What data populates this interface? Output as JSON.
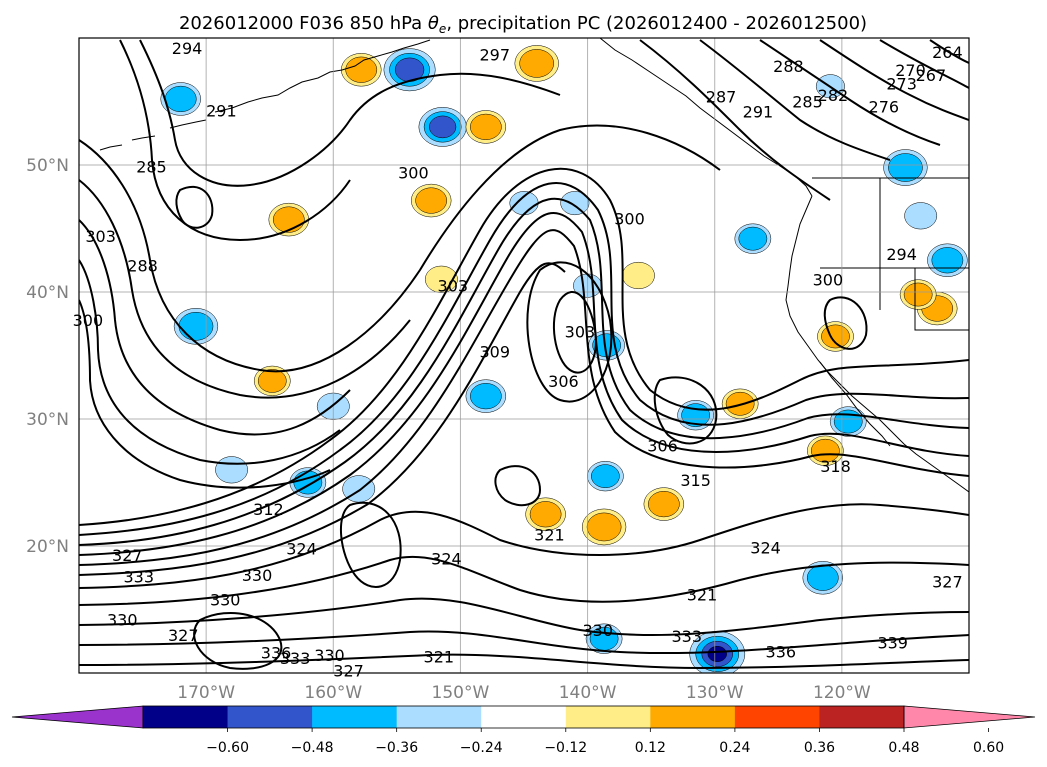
{
  "chart_data": {
    "type": "contour map",
    "title_parts": {
      "pre": "2026012000 F036 850 hPa ",
      "theta": "θ",
      "sub": "e",
      "post": ", precipitation PC (2026012400 - 2026012500)"
    },
    "lat_labels": [
      {
        "lat": 50,
        "text": "50°N"
      },
      {
        "lat": 40,
        "text": "40°N"
      },
      {
        "lat": 30,
        "text": "30°N"
      },
      {
        "lat": 20,
        "text": "20°N"
      }
    ],
    "lon_labels": [
      {
        "lon": -170,
        "text": "170°W"
      },
      {
        "lon": -160,
        "text": "160°W"
      },
      {
        "lon": -150,
        "text": "150°W"
      },
      {
        "lon": -140,
        "text": "140°W"
      },
      {
        "lon": -130,
        "text": "130°W"
      },
      {
        "lon": -120,
        "text": "120°W"
      }
    ],
    "extent": {
      "lon": [
        -180,
        -110
      ],
      "lat": [
        10,
        60
      ]
    },
    "colorbar": {
      "ticks": [
        "−0.60",
        "−0.48",
        "−0.36",
        "−0.24",
        "−0.12",
        "0.12",
        "0.24",
        "0.36",
        "0.48",
        "0.60"
      ],
      "colors": [
        "#9933cc",
        "#000088",
        "#3355cc",
        "#00bbff",
        "#aaddff",
        "#ffffff",
        "#ffee88",
        "#ffaa00",
        "#ff4400",
        "#bb2222",
        "#ff88aa"
      ]
    },
    "contour_labels": [
      {
        "text": "294",
        "lon": -171.5,
        "lat": 59.2
      },
      {
        "text": "297",
        "lon": -147.3,
        "lat": 58.7
      },
      {
        "text": "291",
        "lon": -168.8,
        "lat": 54.3
      },
      {
        "text": "285",
        "lon": -174.3,
        "lat": 49.9
      },
      {
        "text": "303",
        "lon": -178.3,
        "lat": 44.4
      },
      {
        "text": "288",
        "lon": -175.0,
        "lat": 42.1
      },
      {
        "text": "300",
        "lon": -179.3,
        "lat": 37.8
      },
      {
        "text": "300",
        "lon": -153.7,
        "lat": 49.4
      },
      {
        "text": "303",
        "lon": -150.6,
        "lat": 40.5
      },
      {
        "text": "309",
        "lon": -147.3,
        "lat": 35.3
      },
      {
        "text": "303",
        "lon": -140.6,
        "lat": 36.9
      },
      {
        "text": "306",
        "lon": -141.9,
        "lat": 33.0
      },
      {
        "text": "300",
        "lon": -136.7,
        "lat": 45.8
      },
      {
        "text": "306",
        "lon": -134.1,
        "lat": 27.9
      },
      {
        "text": "312",
        "lon": -165.1,
        "lat": 22.9
      },
      {
        "text": "315",
        "lon": -131.5,
        "lat": 25.2
      },
      {
        "text": "318",
        "lon": -120.5,
        "lat": 26.3
      },
      {
        "text": "321",
        "lon": -143.0,
        "lat": 20.9
      },
      {
        "text": "324",
        "lon": -162.5,
        "lat": 19.8
      },
      {
        "text": "324",
        "lon": -151.1,
        "lat": 19.0
      },
      {
        "text": "324",
        "lon": -126.0,
        "lat": 19.9
      },
      {
        "text": "327",
        "lon": -176.2,
        "lat": 19.3
      },
      {
        "text": "333",
        "lon": -175.3,
        "lat": 17.6
      },
      {
        "text": "330",
        "lon": -166.0,
        "lat": 17.7
      },
      {
        "text": "330",
        "lon": -168.5,
        "lat": 15.8
      },
      {
        "text": "330",
        "lon": -176.6,
        "lat": 14.2
      },
      {
        "text": "327",
        "lon": -171.8,
        "lat": 13.0
      },
      {
        "text": "336",
        "lon": -164.5,
        "lat": 11.6
      },
      {
        "text": "333",
        "lon": -163.0,
        "lat": 11.2
      },
      {
        "text": "330",
        "lon": -160.3,
        "lat": 11.4
      },
      {
        "text": "327",
        "lon": -158.8,
        "lat": 10.2
      },
      {
        "text": "321",
        "lon": -151.7,
        "lat": 11.3
      },
      {
        "text": "330",
        "lon": -139.2,
        "lat": 13.4
      },
      {
        "text": "333",
        "lon": -132.2,
        "lat": 12.9
      },
      {
        "text": "336",
        "lon": -124.8,
        "lat": 11.7
      },
      {
        "text": "339",
        "lon": -116.0,
        "lat": 12.4
      },
      {
        "text": "327",
        "lon": -111.7,
        "lat": 17.2
      },
      {
        "text": "321",
        "lon": -131.0,
        "lat": 16.2
      },
      {
        "text": "288",
        "lon": -124.2,
        "lat": 57.8
      },
      {
        "text": "291",
        "lon": -126.6,
        "lat": 54.2
      },
      {
        "text": "285",
        "lon": -122.7,
        "lat": 55.0
      },
      {
        "text": "282",
        "lon": -120.7,
        "lat": 55.5
      },
      {
        "text": "276",
        "lon": -116.7,
        "lat": 54.6
      },
      {
        "text": "273",
        "lon": -115.3,
        "lat": 56.4
      },
      {
        "text": "270",
        "lon": -114.6,
        "lat": 57.5
      },
      {
        "text": "267",
        "lon": -113.0,
        "lat": 57.1
      },
      {
        "text": "264",
        "lon": -111.7,
        "lat": 58.9
      },
      {
        "text": "287",
        "lon": -129.5,
        "lat": 55.4
      },
      {
        "text": "294",
        "lon": -115.3,
        "lat": 43.0
      },
      {
        "text": "300",
        "lon": -121.1,
        "lat": 41.0
      }
    ],
    "precip_blobs": [
      {
        "lon": -172.0,
        "lat": 55.2,
        "value": -0.3
      },
      {
        "lon": -154.0,
        "lat": 57.5,
        "value": -0.45
      },
      {
        "lon": -151.4,
        "lat": 53.0,
        "value": -0.4
      },
      {
        "lon": -157.8,
        "lat": 57.5,
        "value": 0.3
      },
      {
        "lon": -144.0,
        "lat": 58.0,
        "value": 0.35
      },
      {
        "lon": -152.3,
        "lat": 47.2,
        "value": 0.3
      },
      {
        "lon": -163.5,
        "lat": 45.7,
        "value": 0.3
      },
      {
        "lon": -148.0,
        "lat": 53.0,
        "value": 0.3
      },
      {
        "lon": -170.8,
        "lat": 37.3,
        "value": -0.35
      },
      {
        "lon": -164.8,
        "lat": 33.0,
        "value": 0.25
      },
      {
        "lon": -148.0,
        "lat": 31.8,
        "value": -0.3
      },
      {
        "lon": -160.0,
        "lat": 31.0,
        "value": -0.2
      },
      {
        "lon": -162.0,
        "lat": 25.0,
        "value": -0.25
      },
      {
        "lon": -138.7,
        "lat": 21.5,
        "value": 0.35
      },
      {
        "lon": -143.3,
        "lat": 22.5,
        "value": 0.3
      },
      {
        "lon": -134.0,
        "lat": 23.3,
        "value": 0.3
      },
      {
        "lon": -138.6,
        "lat": 25.5,
        "value": -0.25
      },
      {
        "lon": -131.5,
        "lat": 30.3,
        "value": -0.25
      },
      {
        "lon": -119.5,
        "lat": 29.8,
        "value": -0.25
      },
      {
        "lon": -120.5,
        "lat": 36.5,
        "value": 0.25
      },
      {
        "lon": -121.3,
        "lat": 27.5,
        "value": 0.25
      },
      {
        "lon": -138.5,
        "lat": 35.8,
        "value": -0.25
      },
      {
        "lon": -140.0,
        "lat": 40.5,
        "value": -0.15
      },
      {
        "lon": -141.0,
        "lat": 47.0,
        "value": -0.15
      },
      {
        "lon": -145.0,
        "lat": 47.0,
        "value": -0.15
      },
      {
        "lon": -127.0,
        "lat": 44.2,
        "value": -0.25
      },
      {
        "lon": -113.8,
        "lat": 46.0,
        "value": -0.2
      },
      {
        "lon": -111.7,
        "lat": 42.5,
        "value": -0.3
      },
      {
        "lon": -115.0,
        "lat": 49.8,
        "value": -0.35
      },
      {
        "lon": -120.9,
        "lat": 56.2,
        "value": -0.15
      },
      {
        "lon": -112.5,
        "lat": 38.7,
        "value": 0.3
      },
      {
        "lon": -114.0,
        "lat": 39.8,
        "value": 0.25
      },
      {
        "lon": -129.8,
        "lat": 11.5,
        "value": -0.5
      },
      {
        "lon": -121.5,
        "lat": 17.5,
        "value": -0.3
      },
      {
        "lon": -138.7,
        "lat": 12.7,
        "value": -0.25
      },
      {
        "lon": -158.0,
        "lat": 24.5,
        "value": -0.2
      },
      {
        "lon": -136.0,
        "lat": 41.3,
        "value": 0.2
      },
      {
        "lon": -151.5,
        "lat": 41.0,
        "value": 0.2
      },
      {
        "lon": -128.0,
        "lat": 31.2,
        "value": 0.25
      },
      {
        "lon": -168.0,
        "lat": 26.0,
        "value": -0.2
      }
    ]
  }
}
